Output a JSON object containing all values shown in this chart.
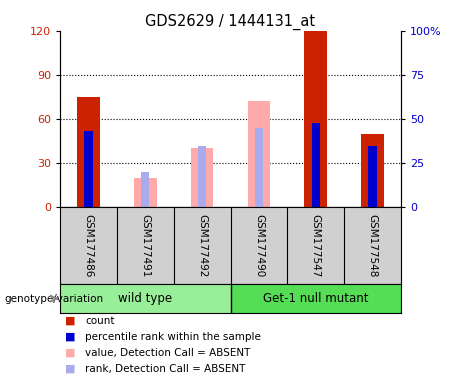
{
  "title": "GDS2629 / 1444131_at",
  "samples": [
    "GSM177486",
    "GSM177491",
    "GSM177492",
    "GSM177490",
    "GSM177547",
    "GSM177548"
  ],
  "count_values": [
    75,
    0,
    0,
    0,
    120,
    50
  ],
  "percentile_rank": [
    43,
    0,
    0,
    0,
    48,
    35
  ],
  "absent_value": [
    0,
    20,
    40,
    72,
    0,
    0
  ],
  "absent_rank": [
    0,
    20,
    35,
    45,
    0,
    0
  ],
  "detection_absent": [
    false,
    true,
    true,
    true,
    false,
    false
  ],
  "ylim_left": [
    0,
    120
  ],
  "ylim_right": [
    0,
    100
  ],
  "yticks_left": [
    0,
    30,
    60,
    90,
    120
  ],
  "yticks_right": [
    0,
    25,
    50,
    75,
    100
  ],
  "ytick_right_labels": [
    "0",
    "25",
    "50",
    "75",
    "100%"
  ],
  "color_count": "#cc2200",
  "color_rank": "#0000cc",
  "color_absent_value": "#ffaaaa",
  "color_absent_rank": "#aaaaee",
  "color_group_wt": "#99ee99",
  "color_group_mut": "#55dd55",
  "group_names": [
    "wild type",
    "Get-1 null mutant"
  ],
  "group_label": "genotype/variation",
  "legend_items": [
    "count",
    "percentile rank within the sample",
    "value, Detection Call = ABSENT",
    "rank, Detection Call = ABSENT"
  ],
  "legend_colors": [
    "#cc2200",
    "#0000cc",
    "#ffaaaa",
    "#aaaaee"
  ],
  "bar_width": 0.4,
  "rank_bar_width": 0.15
}
